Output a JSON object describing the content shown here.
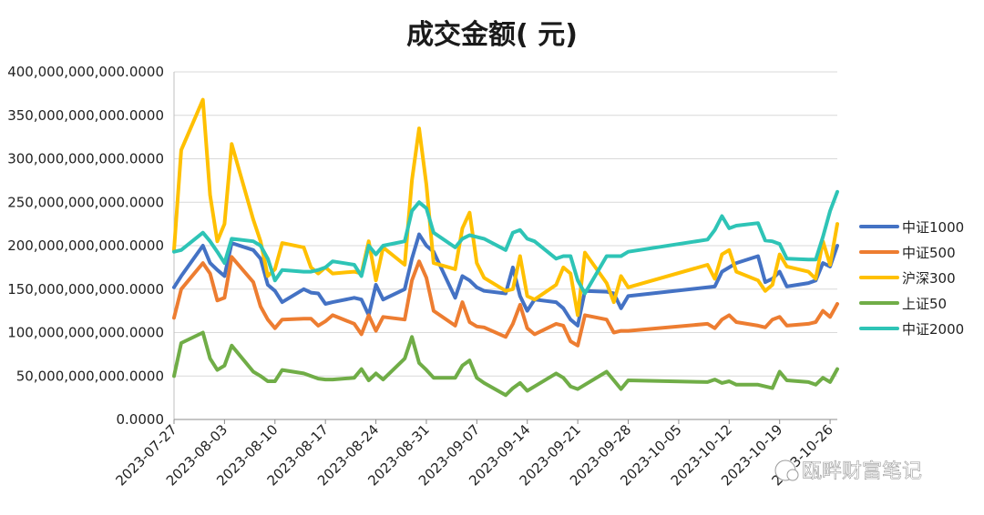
{
  "chart_data": {
    "type": "line",
    "title": "成交金额( 元)",
    "ylim": [
      0,
      400000000000
    ],
    "y_ticks": [
      "0.0000",
      "50,000,000,000.0000",
      "100,000,000,000.0000",
      "150,000,000,000.0000",
      "200,000,000,000.0000",
      "250,000,000,000.0000",
      "300,000,000,000.0000",
      "350,000,000,000.0000",
      "400,000,000,000.0000"
    ],
    "x_ticks": [
      "2023-07-27",
      "2023-08-03",
      "2023-08-10",
      "2023-08-17",
      "2023-08-24",
      "2023-08-31",
      "2023-09-07",
      "2023-09-14",
      "2023-09-21",
      "2023-09-28",
      "2023-10-05",
      "2023-10-12",
      "2023-10-19",
      "2023-10-26"
    ],
    "x_range": [
      "2023-07-27",
      "2023-10-27"
    ],
    "grid": "horizontal",
    "legend_position": "right",
    "x": [
      "2023-07-27",
      "2023-07-28",
      "2023-07-31",
      "2023-08-01",
      "2023-08-02",
      "2023-08-03",
      "2023-08-04",
      "2023-08-07",
      "2023-08-08",
      "2023-08-09",
      "2023-08-10",
      "2023-08-11",
      "2023-08-14",
      "2023-08-15",
      "2023-08-16",
      "2023-08-17",
      "2023-08-18",
      "2023-08-21",
      "2023-08-22",
      "2023-08-23",
      "2023-08-24",
      "2023-08-25",
      "2023-08-28",
      "2023-08-29",
      "2023-08-30",
      "2023-08-31",
      "2023-09-01",
      "2023-09-04",
      "2023-09-05",
      "2023-09-06",
      "2023-09-07",
      "2023-09-08",
      "2023-09-11",
      "2023-09-12",
      "2023-09-13",
      "2023-09-14",
      "2023-09-15",
      "2023-09-18",
      "2023-09-19",
      "2023-09-20",
      "2023-09-21",
      "2023-09-22",
      "2023-09-25",
      "2023-09-26",
      "2023-09-27",
      "2023-09-28",
      "2023-10-09",
      "2023-10-10",
      "2023-10-11",
      "2023-10-12",
      "2023-10-13",
      "2023-10-16",
      "2023-10-17",
      "2023-10-18",
      "2023-10-19",
      "2023-10-20",
      "2023-10-23",
      "2023-10-24",
      "2023-10-25",
      "2023-10-26",
      "2023-10-27"
    ],
    "series": [
      {
        "name": "中证1000",
        "color": "#4472c4",
        "values": [
          152,
          165,
          200,
          180,
          172,
          165,
          203,
          195,
          185,
          155,
          148,
          135,
          150,
          146,
          145,
          133,
          135,
          140,
          138,
          120,
          155,
          138,
          150,
          185,
          213,
          200,
          193,
          140,
          165,
          160,
          152,
          148,
          145,
          175,
          142,
          125,
          138,
          135,
          128,
          115,
          108,
          148,
          147,
          145,
          128,
          142,
          152,
          153,
          170,
          175,
          180,
          188,
          158,
          162,
          170,
          153,
          157,
          160,
          180,
          176,
          200
        ]
      },
      {
        "name": "中证500",
        "color": "#ed7d31",
        "values": [
          117,
          150,
          180,
          168,
          137,
          140,
          187,
          158,
          130,
          115,
          105,
          115,
          116,
          116,
          108,
          113,
          120,
          110,
          98,
          120,
          102,
          118,
          115,
          160,
          182,
          163,
          125,
          108,
          135,
          112,
          107,
          106,
          95,
          110,
          132,
          105,
          98,
          110,
          108,
          90,
          85,
          120,
          115,
          100,
          102,
          102,
          110,
          105,
          115,
          120,
          112,
          108,
          106,
          115,
          118,
          108,
          110,
          112,
          125,
          118,
          133
        ]
      },
      {
        "name": "沪深300",
        "color": "#ffc000",
        "values": [
          195,
          310,
          368,
          258,
          205,
          225,
          317,
          230,
          205,
          165,
          173,
          203,
          198,
          175,
          168,
          175,
          168,
          170,
          168,
          205,
          160,
          198,
          178,
          275,
          335,
          270,
          180,
          173,
          220,
          238,
          180,
          163,
          148,
          150,
          188,
          142,
          138,
          155,
          175,
          168,
          120,
          192,
          157,
          135,
          165,
          152,
          178,
          162,
          190,
          195,
          170,
          160,
          148,
          155,
          190,
          176,
          170,
          162,
          205,
          178,
          225
        ]
      },
      {
        "name": "上证50",
        "color": "#70ad47",
        "values": [
          50,
          88,
          100,
          70,
          57,
          62,
          85,
          55,
          50,
          44,
          44,
          57,
          53,
          50,
          47,
          46,
          46,
          48,
          58,
          45,
          53,
          46,
          70,
          95,
          65,
          57,
          48,
          48,
          62,
          68,
          48,
          42,
          28,
          36,
          42,
          33,
          38,
          53,
          48,
          38,
          35,
          40,
          55,
          45,
          35,
          45,
          43,
          46,
          42,
          44,
          40,
          40,
          38,
          36,
          55,
          45,
          43,
          40,
          48,
          43,
          58
        ]
      },
      {
        "name": "中证2000",
        "color": "#2ec4b6",
        "values": [
          193,
          195,
          215,
          205,
          193,
          180,
          208,
          205,
          200,
          185,
          160,
          172,
          170,
          170,
          172,
          175,
          182,
          178,
          165,
          200,
          190,
          200,
          205,
          240,
          250,
          243,
          215,
          198,
          208,
          212,
          210,
          208,
          195,
          215,
          218,
          208,
          205,
          185,
          188,
          188,
          160,
          145,
          188,
          188,
          188,
          193,
          207,
          218,
          234,
          220,
          223,
          226,
          206,
          205,
          202,
          185,
          184,
          184,
          210,
          240,
          262
        ]
      }
    ]
  },
  "watermark": "瓯畔财富笔记"
}
